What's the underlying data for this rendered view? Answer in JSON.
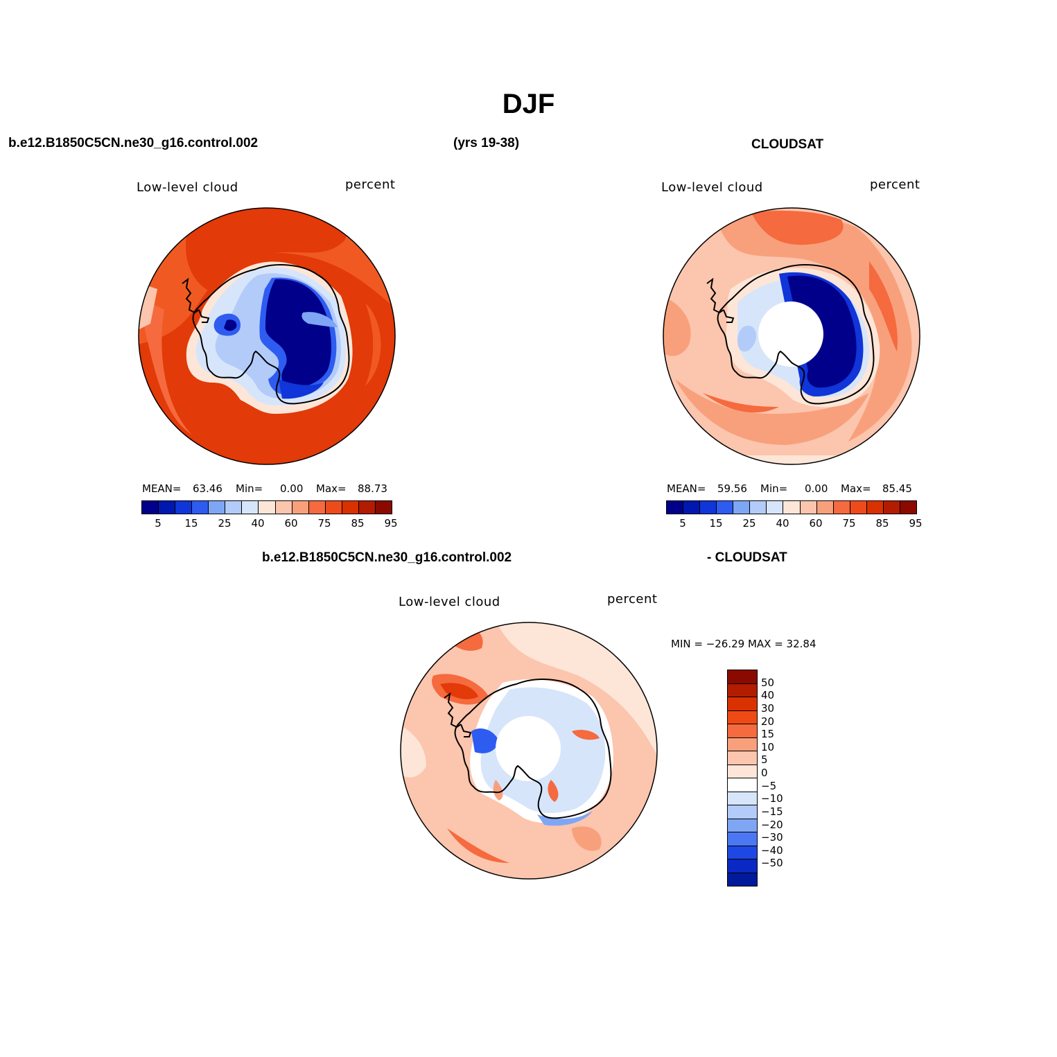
{
  "title": "DJF",
  "header": {
    "case_name": "b.e12.B1850C5CN.ne30_g16.control.002",
    "years": "(yrs 19-38)",
    "obs_name": "CLOUDSAT",
    "diff_case": "b.e12.B1850C5CN.ne30_g16.control.002",
    "diff_obs": "- CLOUDSAT"
  },
  "panels": [
    {
      "variable": "Low-level cloud",
      "units": "percent",
      "mean_label": "MEAN=",
      "mean": "63.46",
      "min_label": "Min=",
      "min": "0.00",
      "max_label": "Max=",
      "max": "88.73"
    },
    {
      "variable": "Low-level cloud",
      "units": "percent",
      "mean_label": "MEAN=",
      "mean": "59.56",
      "min_label": "Min=",
      "min": "0.00",
      "max_label": "Max=",
      "max": "85.45"
    }
  ],
  "diff_panel": {
    "variable": "Low-level cloud",
    "units": "percent",
    "minmax": "MIN = −26.29  MAX =   32.84"
  },
  "colorbar_main": {
    "tick_labels": [
      "5",
      "15",
      "25",
      "40",
      "60",
      "75",
      "85",
      "95"
    ],
    "colors": [
      "#00008a",
      "#0018b0",
      "#1035d8",
      "#2e5cf0",
      "#7fa6f5",
      "#b2cbf9",
      "#d7e5fb",
      "#fde6d8",
      "#fcc5ad",
      "#f8a07c",
      "#f56a3e",
      "#ee4b1c",
      "#d93200",
      "#b21c00",
      "#8a0a00"
    ]
  },
  "colorbar_diff": {
    "tick_labels": [
      "50",
      "40",
      "30",
      "20",
      "15",
      "10",
      "5",
      "0",
      "−5",
      "−10",
      "−15",
      "−20",
      "−30",
      "−40",
      "−50"
    ],
    "colors": [
      "#8a0a00",
      "#b21c00",
      "#d93200",
      "#f04a14",
      "#f56a3e",
      "#f8a07c",
      "#fcc5ad",
      "#fde6d8",
      "#ffffff",
      "#d7e5fb",
      "#b2cbf9",
      "#7fa6f5",
      "#4b78f2",
      "#1e48e4",
      "#0a28c4",
      "#001a9c"
    ]
  }
}
